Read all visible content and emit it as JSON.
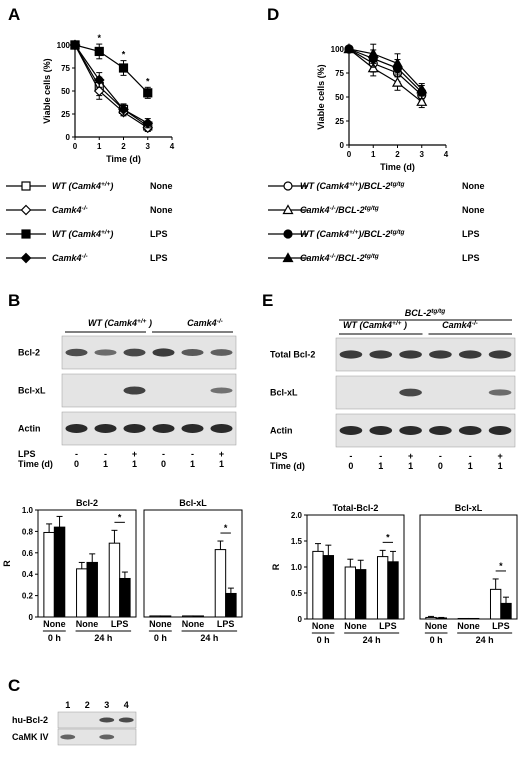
{
  "panels": {
    "A": "A",
    "B": "B",
    "C": "C",
    "D": "D",
    "E": "E"
  },
  "panelA": {
    "chart_data": {
      "type": "line",
      "xlabel": "Time  (d)",
      "ylabel": "Viable cells (%)",
      "x": [
        0,
        1,
        2,
        3
      ],
      "xticks": [
        "0",
        "1",
        "2",
        "3",
        "4"
      ],
      "yticks": [
        "0",
        "25",
        "50",
        "75",
        "100"
      ],
      "xlim": [
        0,
        4
      ],
      "ylim": [
        0,
        100
      ],
      "series": [
        {
          "name": "WT (Camk4+/+) None",
          "marker": "open-square",
          "values": [
            100,
            55,
            30,
            12
          ],
          "err": [
            3,
            10,
            5,
            5
          ]
        },
        {
          "name": "Camk4-/- None",
          "marker": "open-diamond",
          "values": [
            100,
            50,
            27,
            10
          ],
          "err": [
            3,
            9,
            4,
            4
          ]
        },
        {
          "name": "WT (Camk4+/+) LPS",
          "marker": "filled-square",
          "values": [
            100,
            93,
            75,
            48
          ],
          "err": [
            3,
            8,
            8,
            6
          ]
        },
        {
          "name": "Camk4-/- LPS",
          "marker": "filled-diamond",
          "values": [
            100,
            62,
            30,
            15
          ],
          "err": [
            3,
            8,
            6,
            5
          ]
        }
      ],
      "annotations": [
        "*",
        "*",
        "*"
      ]
    },
    "legend": [
      {
        "genotype": "WT (Camk4",
        "sup": "+/+",
        "tail": ")",
        "treatment": "None"
      },
      {
        "genotype": "Camk4",
        "sup": "-/-",
        "tail": "",
        "treatment": "None"
      },
      {
        "genotype": "WT (Camk4",
        "sup": "+/+",
        "tail": ")",
        "treatment": "LPS"
      },
      {
        "genotype": "Camk4",
        "sup": "-/-",
        "tail": "",
        "treatment": "LPS"
      }
    ]
  },
  "panelD": {
    "chart_data": {
      "type": "line",
      "xlabel": "Time  (d)",
      "ylabel": "Viable cells (%)",
      "x": [
        0,
        1,
        2,
        3
      ],
      "xticks": [
        "0",
        "1",
        "2",
        "3",
        "4"
      ],
      "yticks": [
        "0",
        "25",
        "50",
        "75",
        "100"
      ],
      "xlim": [
        0,
        4
      ],
      "ylim": [
        0,
        100
      ],
      "series": [
        {
          "name": "WT (Camk4+/+)/BCL-2tg/tg None",
          "marker": "open-circle",
          "values": [
            100,
            85,
            75,
            52
          ],
          "err": [
            3,
            9,
            9,
            6
          ]
        },
        {
          "name": "Camk4-/-/BCL-2tg/tg None",
          "marker": "open-triangle",
          "values": [
            100,
            80,
            65,
            45
          ],
          "err": [
            3,
            8,
            8,
            6
          ]
        },
        {
          "name": "WT (Camk4+/+)/BCL-2tg/tg LPS",
          "marker": "filled-circle",
          "values": [
            100,
            90,
            80,
            55
          ],
          "err": [
            3,
            9,
            9,
            7
          ]
        },
        {
          "name": "Camk4-/-/BCL-2tg/tg LPS",
          "marker": "filled-triangle",
          "values": [
            100,
            95,
            85,
            58
          ],
          "err": [
            3,
            10,
            10,
            6
          ]
        }
      ]
    },
    "legend": [
      {
        "genotype": "WT (Camk4",
        "sup": "+/+",
        "tail": ")/BCL-2",
        "sup2": "tg/tg",
        "treatment": "None"
      },
      {
        "genotype": "Camk4",
        "sup": "-/-",
        "tail": "/BCL-2",
        "sup2": "tg/tg",
        "treatment": "None"
      },
      {
        "genotype": "WT (Camk4",
        "sup": "+/+",
        "tail": ")/BCL-2",
        "sup2": "tg/tg",
        "treatment": "LPS"
      },
      {
        "genotype": "Camk4",
        "sup": "-/-",
        "tail": "/BCL-2",
        "sup2": "tg/tg",
        "treatment": "LPS"
      }
    ]
  },
  "panelB": {
    "header_wt": "WT (Camk4",
    "header_wt_sup": "+/+",
    "header_wt_tail": " )",
    "header_ko": "Camk4",
    "header_ko_sup": "-/-",
    "rows": [
      "Bcl-2",
      "Bcl-xL",
      "Actin"
    ],
    "lps_label": "LPS",
    "time_label": "Time (d)",
    "lps": [
      "-",
      "-",
      "+",
      "-",
      "-",
      "+"
    ],
    "time": [
      "0",
      "1",
      "1",
      "0",
      "1",
      "1"
    ],
    "bcl2_band": [
      0.7,
      0.45,
      0.75,
      0.85,
      0.6,
      0.55
    ],
    "bclxl_band": [
      0,
      0,
      0.8,
      0,
      0,
      0.4
    ],
    "chart_data": [
      {
        "type": "bar",
        "title": "Bcl-2",
        "ylabel": "R",
        "ylim": [
          0,
          1.0
        ],
        "yticks": [
          "0",
          "0.2",
          "0.4",
          "0.6",
          "0.8",
          "1.0"
        ],
        "categories": [
          "None",
          "None",
          "LPS"
        ],
        "groups": [
          "0 h",
          "24 h"
        ],
        "series": [
          {
            "name": "WT",
            "values": [
              0.79,
              0.45,
              0.69
            ],
            "err": [
              0.08,
              0.06,
              0.12
            ]
          },
          {
            "name": "KO",
            "values": [
              0.84,
              0.51,
              0.36
            ],
            "err": [
              0.1,
              0.08,
              0.06
            ]
          }
        ],
        "annotations": [
          "*"
        ]
      },
      {
        "type": "bar",
        "title": "Bcl-xL",
        "ylabel": "",
        "ylim": [
          0,
          1.0
        ],
        "categories": [
          "None",
          "None",
          "LPS"
        ],
        "groups": [
          "0 h",
          "24 h"
        ],
        "series": [
          {
            "name": "WT",
            "values": [
              0.01,
              0.01,
              0.63
            ],
            "err": [
              0,
              0,
              0.08
            ]
          },
          {
            "name": "KO",
            "values": [
              0.01,
              0.01,
              0.22
            ],
            "err": [
              0,
              0,
              0.05
            ]
          }
        ],
        "annotations": [
          "*"
        ]
      }
    ]
  },
  "panelE": {
    "header_top": "BCL-2",
    "header_top_sup": "tg/tg",
    "header_wt": "WT (Camk4",
    "header_wt_sup": "+/+",
    "header_wt_tail": " )",
    "header_ko": "Camk4",
    "header_ko_sup": "-/-",
    "rows": [
      "Total Bcl-2",
      "Bcl-xL",
      "Actin"
    ],
    "lps_label": "LPS",
    "time_label": "Time (d)",
    "lps": [
      "-",
      "-",
      "+",
      "-",
      "-",
      "+"
    ],
    "time": [
      "0",
      "1",
      "1",
      "0",
      "1",
      "1"
    ],
    "bcl2_band": [
      0.85,
      0.85,
      0.85,
      0.85,
      0.85,
      0.85
    ],
    "bclxl_band": [
      0,
      0,
      0.75,
      0,
      0,
      0.45
    ],
    "chart_data": [
      {
        "type": "bar",
        "title": "Total-Bcl-2",
        "ylabel": "R",
        "ylim": [
          0,
          2.0
        ],
        "yticks": [
          "0",
          "0.5",
          "1.0",
          "1.5",
          "2.0"
        ],
        "categories": [
          "None",
          "None",
          "LPS"
        ],
        "groups": [
          "0 h",
          "24 h"
        ],
        "series": [
          {
            "name": "WT",
            "values": [
              1.3,
              1.0,
              1.2
            ],
            "err": [
              0.15,
              0.15,
              0.12
            ]
          },
          {
            "name": "KO",
            "values": [
              1.22,
              0.95,
              1.1
            ],
            "err": [
              0.2,
              0.18,
              0.2
            ]
          }
        ],
        "annotations": [
          "*"
        ]
      },
      {
        "type": "bar",
        "title": "Bcl-xL",
        "ylabel": "",
        "ylim": [
          0,
          2.0
        ],
        "categories": [
          "None",
          "None",
          "LPS"
        ],
        "groups": [
          "0 h",
          "24 h"
        ],
        "series": [
          {
            "name": "WT",
            "values": [
              0.03,
              0.01,
              0.57
            ],
            "err": [
              0.02,
              0,
              0.2
            ]
          },
          {
            "name": "KO",
            "values": [
              0.02,
              0.01,
              0.3
            ],
            "err": [
              0.01,
              0,
              0.12
            ]
          }
        ],
        "annotations": [
          "*"
        ]
      }
    ]
  },
  "panelC": {
    "lanes": [
      "1",
      "2",
      "3",
      "4"
    ],
    "rows": [
      "hu-Bcl-2",
      "CaMK IV"
    ],
    "hubcl2_band": [
      0,
      0,
      0.8,
      0.8
    ],
    "camk_band": [
      0.6,
      0,
      0.6,
      0
    ]
  },
  "colors": {
    "filled": "#000000",
    "open": "#ffffff",
    "blot_bg": "#e4e4e4",
    "band": "#202020"
  }
}
